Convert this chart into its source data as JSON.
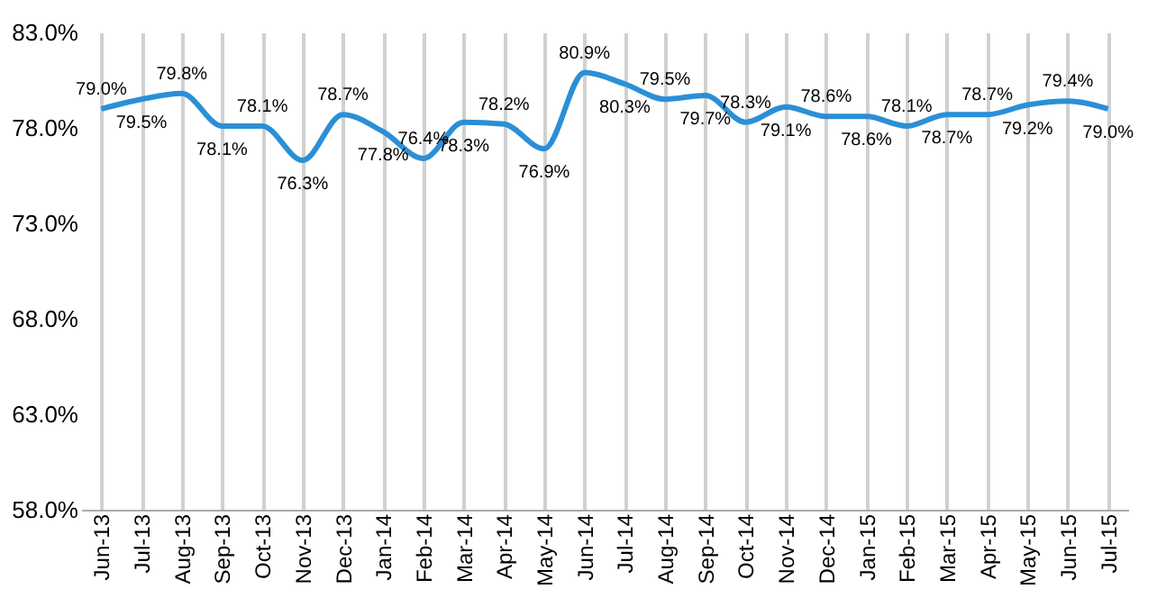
{
  "chart_data": {
    "type": "line",
    "categories": [
      "Jun-13",
      "Jul-13",
      "Aug-13",
      "Sep-13",
      "Oct-13",
      "Nov-13",
      "Dec-13",
      "Jan-14",
      "Feb-14",
      "Mar-14",
      "Apr-14",
      "May-14",
      "Jun-14",
      "Jul-14",
      "Aug-14",
      "Sep-14",
      "Oct-14",
      "Nov-14",
      "Dec-14",
      "Jan-15",
      "Feb-15",
      "Mar-15",
      "Apr-15",
      "May-15",
      "Jun-15",
      "Jul-15"
    ],
    "series": [
      {
        "color": "#2b8fd6",
        "values": [
          79.0,
          79.5,
          79.8,
          78.1,
          78.1,
          76.3,
          78.7,
          77.8,
          76.4,
          78.3,
          78.2,
          76.9,
          80.9,
          80.3,
          79.5,
          79.7,
          78.3,
          79.1,
          78.6,
          78.6,
          78.1,
          78.7,
          78.7,
          79.2,
          79.4,
          79.0
        ],
        "value_labels": [
          "79.0%",
          "79.5%",
          "79.8%",
          "78.1%",
          "78.1%",
          "76.3%",
          "78.7%",
          "77.8%",
          "76.4%",
          "78.3%",
          "78.2%",
          "76.9%",
          "80.9%",
          "80.3%",
          "79.5%",
          "79.7%",
          "78.3%",
          "79.1%",
          "78.6%",
          "78.6%",
          "78.1%",
          "78.7%",
          "78.7%",
          "79.2%",
          "79.4%",
          "79.0%"
        ]
      }
    ],
    "ylim": [
      58,
      83
    ],
    "yticks": [
      {
        "value": 58,
        "label": "58.0%"
      },
      {
        "value": 63,
        "label": "63.0%"
      },
      {
        "value": 68,
        "label": "68.0%"
      },
      {
        "value": 73,
        "label": "73.0%"
      },
      {
        "value": 78,
        "label": "78.0%"
      },
      {
        "value": 83,
        "label": "83.0%"
      }
    ],
    "grid": "x",
    "marker": "none",
    "line_style": "solid"
  }
}
